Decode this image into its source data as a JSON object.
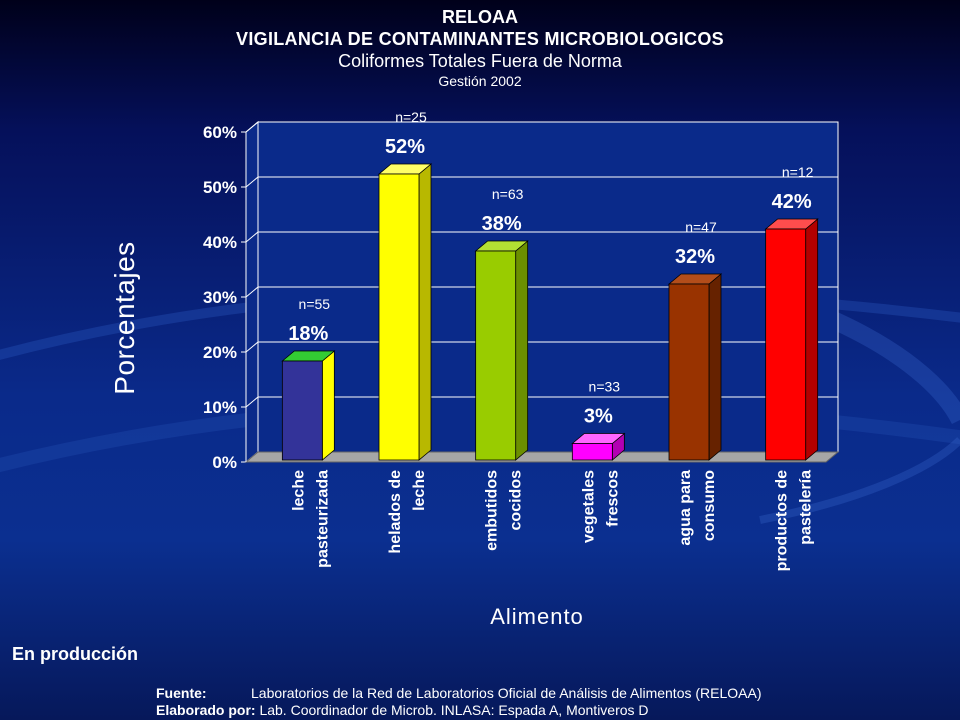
{
  "header": {
    "title": "RELOAA",
    "subtitle": "VIGILANCIA DE CONTAMINANTES MICROBIOLOGICOS",
    "topic": "Coliformes Totales Fuera de Norma",
    "period": "Gestión 2002"
  },
  "status_label": "En producción",
  "footer": {
    "source_label": "Fuente:",
    "source_text": "Laboratorios de la Red de Laboratorios Oficial de Análisis de Alimentos (RELOAA)",
    "author_label": "Elaborado por:",
    "author_text": "Lab. Coordinador de Microb. INLASA: Espada A,  Montiveros  D"
  },
  "chart_data": {
    "type": "bar",
    "ylabel": "Porcentajes",
    "xlabel": "Alimento",
    "ylim": [
      0,
      60
    ],
    "yticks": [
      "0%",
      "10%",
      "20%",
      "30%",
      "40%",
      "50%",
      "60%"
    ],
    "grid": true,
    "categories": [
      [
        "leche",
        "pasteurizada"
      ],
      [
        "helados de",
        "leche"
      ],
      [
        "embutidos",
        "cocidos"
      ],
      [
        "vegetales",
        "frescos"
      ],
      [
        "agua para",
        "consumo"
      ],
      [
        "productos de",
        "pastelería"
      ]
    ],
    "values": [
      18,
      52,
      38,
      3,
      32,
      42
    ],
    "value_labels": [
      "18%",
      "52%",
      "38%",
      "3%",
      "32%",
      "42%"
    ],
    "n_labels": [
      "n=55",
      "n=25",
      "n=63",
      "n=33",
      "n=47",
      "n=12"
    ],
    "colors": [
      {
        "front": "#333399",
        "side": "#ffff00",
        "top": "#33cc33"
      },
      {
        "front": "#ffff00",
        "side": "#b8b800",
        "top": "#ffff66"
      },
      {
        "front": "#99cc00",
        "side": "#6b8f00",
        "top": "#b3e033"
      },
      {
        "front": "#ff00ff",
        "side": "#b300b3",
        "top": "#ff66ff"
      },
      {
        "front": "#993300",
        "side": "#662200",
        "top": "#b34d1a"
      },
      {
        "front": "#ff0000",
        "side": "#b30000",
        "top": "#ff4d4d"
      }
    ],
    "plot_background": "#0a2a8a",
    "floor_color": "#a6a6a6"
  }
}
